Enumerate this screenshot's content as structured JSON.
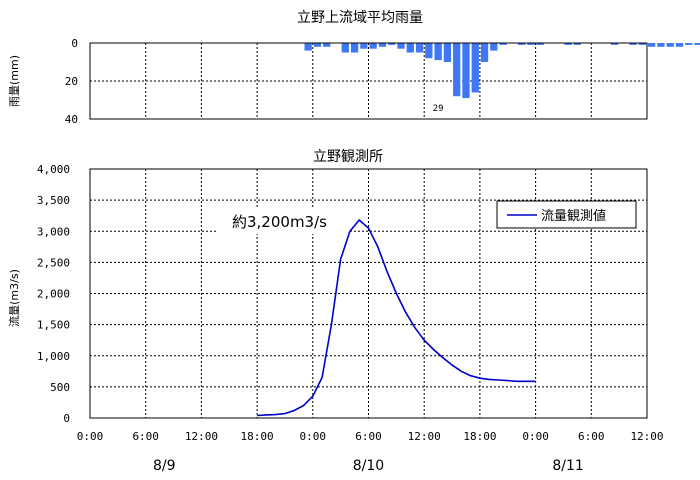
{
  "chart_data": [
    {
      "type": "bar",
      "title": "立野上流域平均雨量",
      "ylabel": "雨量(mm)",
      "y_ticks": [
        "0",
        "20",
        "40"
      ],
      "ylim": [
        0,
        40
      ],
      "inverted_y": true,
      "color": "#3f77f4",
      "grid": true,
      "x_unit": "hours from 8/9 0:00",
      "bars": [
        {
          "x": 24,
          "value": 4
        },
        {
          "x": 25,
          "value": 2
        },
        {
          "x": 26,
          "value": 2
        },
        {
          "x": 28,
          "value": 5
        },
        {
          "x": 29,
          "value": 5
        },
        {
          "x": 30,
          "value": 3
        },
        {
          "x": 31,
          "value": 3
        },
        {
          "x": 32,
          "value": 2
        },
        {
          "x": 33,
          "value": 1
        },
        {
          "x": 34,
          "value": 3
        },
        {
          "x": 35,
          "value": 5
        },
        {
          "x": 36,
          "value": 5
        },
        {
          "x": 37,
          "value": 8
        },
        {
          "x": 38,
          "value": 9
        },
        {
          "x": 39,
          "value": 10
        },
        {
          "x": 40,
          "value": 28
        },
        {
          "x": 41,
          "value": 29
        },
        {
          "x": 42,
          "value": 26
        },
        {
          "x": 43,
          "value": 10
        },
        {
          "x": 44,
          "value": 4
        },
        {
          "x": 45,
          "value": 1
        },
        {
          "x": 47,
          "value": 1
        },
        {
          "x": 48,
          "value": 1
        },
        {
          "x": 49,
          "value": 1
        },
        {
          "x": 52,
          "value": 1
        },
        {
          "x": 53,
          "value": 1
        },
        {
          "x": 57,
          "value": 1
        },
        {
          "x": 59,
          "value": 1
        },
        {
          "x": 60,
          "value": 1
        },
        {
          "x": 61,
          "value": 2
        },
        {
          "x": 62,
          "value": 2
        },
        {
          "x": 63,
          "value": 2
        },
        {
          "x": 64,
          "value": 2
        },
        {
          "x": 65,
          "value": 1
        },
        {
          "x": 66,
          "value": 1
        },
        {
          "x": 67,
          "value": 2
        },
        {
          "x": 68,
          "value": 3
        },
        {
          "x": 69,
          "value": 1
        }
      ],
      "peak_label": {
        "text": "29",
        "x": 37.5
      }
    },
    {
      "type": "line",
      "title": "立野観測所",
      "ylabel": "流量(m3/s)",
      "y_ticks": [
        "0",
        "500",
        "1,000",
        "1,500",
        "2,000",
        "2,500",
        "3,000",
        "3,500",
        "4,000"
      ],
      "ylim": [
        0,
        4000
      ],
      "x_ticks": [
        "0:00",
        "6:00",
        "12:00",
        "18:00",
        "0:00",
        "6:00",
        "12:00",
        "18:00",
        "0:00",
        "6:00",
        "12:00"
      ],
      "xlim": [
        0,
        60
      ],
      "date_labels": [
        {
          "text": "8/9",
          "x": 8
        },
        {
          "text": "8/10",
          "x": 30
        },
        {
          "text": "8/11",
          "x": 51.5
        }
      ],
      "grid": true,
      "legend": {
        "placement": "top-right",
        "label": "流量観測値"
      },
      "annotation": "約3,200m3/s",
      "series": [
        {
          "name": "流量観測値",
          "color": "#0000cc",
          "points": [
            [
              18,
              40
            ],
            [
              19,
              50
            ],
            [
              20,
              55
            ],
            [
              21,
              70
            ],
            [
              22,
              120
            ],
            [
              23,
              200
            ],
            [
              24,
              350
            ],
            [
              25,
              650
            ],
            [
              26,
              1500
            ],
            [
              27,
              2550
            ],
            [
              28,
              3000
            ],
            [
              29,
              3180
            ],
            [
              30,
              3050
            ],
            [
              31,
              2750
            ],
            [
              32,
              2350
            ],
            [
              33,
              2000
            ],
            [
              34,
              1700
            ],
            [
              35,
              1450
            ],
            [
              36,
              1250
            ],
            [
              37,
              1100
            ],
            [
              38,
              970
            ],
            [
              39,
              850
            ],
            [
              40,
              750
            ],
            [
              41,
              680
            ],
            [
              42,
              640
            ],
            [
              43,
              620
            ],
            [
              44,
              610
            ],
            [
              45,
              600
            ],
            [
              46,
              590
            ],
            [
              47,
              590
            ],
            [
              48,
              590
            ]
          ]
        }
      ]
    }
  ]
}
